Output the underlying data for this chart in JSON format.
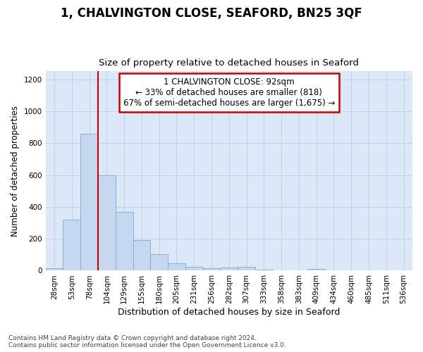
{
  "title": "1, CHALVINGTON CLOSE, SEAFORD, BN25 3QF",
  "subtitle": "Size of property relative to detached houses in Seaford",
  "xlabel": "Distribution of detached houses by size in Seaford",
  "ylabel": "Number of detached properties",
  "bar_color": "#c5d8f0",
  "bar_edge_color": "#7aaad0",
  "background_color": "#dce8f8",
  "fig_background": "#ffffff",
  "categories": [
    "28sqm",
    "53sqm",
    "78sqm",
    "104sqm",
    "129sqm",
    "155sqm",
    "180sqm",
    "205sqm",
    "231sqm",
    "256sqm",
    "282sqm",
    "307sqm",
    "333sqm",
    "358sqm",
    "383sqm",
    "409sqm",
    "434sqm",
    "460sqm",
    "485sqm",
    "511sqm",
    "536sqm"
  ],
  "values": [
    15,
    320,
    860,
    600,
    370,
    190,
    105,
    45,
    25,
    15,
    20,
    25,
    8,
    0,
    0,
    10,
    0,
    0,
    0,
    0,
    0
  ],
  "ylim": [
    0,
    1250
  ],
  "yticks": [
    0,
    200,
    400,
    600,
    800,
    1000,
    1200
  ],
  "annotation_title": "1 CHALVINGTON CLOSE: 92sqm",
  "annotation_line1": "← 33% of detached houses are smaller (818)",
  "annotation_line2": "67% of semi-detached houses are larger (1,675) →",
  "annotation_box_color": "#ffffff",
  "annotation_box_edge": "#cc0000",
  "red_line_color": "#cc0000",
  "footer_line1": "Contains HM Land Registry data © Crown copyright and database right 2024.",
  "footer_line2": "Contains public sector information licensed under the Open Government Licence v3.0.",
  "grid_color": "#b8cfe8",
  "title_fontsize": 12,
  "subtitle_fontsize": 9.5,
  "ylabel_fontsize": 8.5,
  "xlabel_fontsize": 9,
  "tick_fontsize": 7.5,
  "annotation_fontsize": 8.5,
  "footer_fontsize": 6.5
}
